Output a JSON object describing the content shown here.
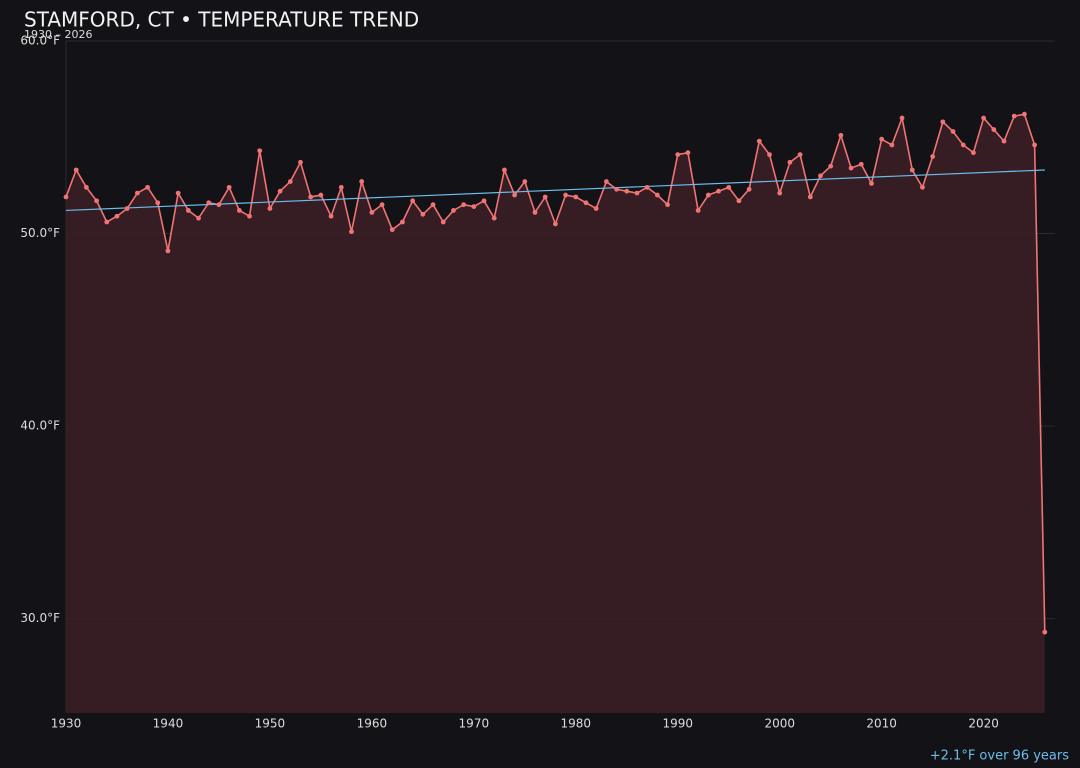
{
  "chart_data": {
    "type": "line",
    "title": "STAMFORD, CT • TEMPERATURE TREND",
    "subtitle": "1930 – 2026",
    "annotation": "+2.1°F over 96 years",
    "x": [
      1930,
      1931,
      1932,
      1933,
      1934,
      1935,
      1936,
      1937,
      1938,
      1939,
      1940,
      1941,
      1942,
      1943,
      1944,
      1945,
      1946,
      1947,
      1948,
      1949,
      1950,
      1951,
      1952,
      1953,
      1954,
      1955,
      1956,
      1957,
      1958,
      1959,
      1960,
      1961,
      1962,
      1963,
      1964,
      1965,
      1966,
      1967,
      1968,
      1969,
      1970,
      1971,
      1972,
      1973,
      1974,
      1975,
      1976,
      1977,
      1978,
      1979,
      1980,
      1981,
      1982,
      1983,
      1984,
      1985,
      1986,
      1987,
      1988,
      1989,
      1990,
      1991,
      1992,
      1993,
      1994,
      1995,
      1996,
      1997,
      1998,
      1999,
      2000,
      2001,
      2002,
      2003,
      2004,
      2005,
      2006,
      2007,
      2008,
      2009,
      2010,
      2011,
      2012,
      2013,
      2014,
      2015,
      2016,
      2017,
      2018,
      2019,
      2020,
      2021,
      2022,
      2023,
      2024,
      2025,
      2026
    ],
    "values": [
      51.9,
      53.3,
      52.4,
      51.7,
      50.6,
      50.9,
      51.3,
      52.1,
      52.4,
      51.6,
      49.1,
      52.1,
      51.2,
      50.8,
      51.6,
      51.5,
      52.4,
      51.2,
      50.9,
      54.3,
      51.3,
      52.2,
      52.7,
      53.7,
      51.9,
      52.0,
      50.9,
      52.4,
      50.1,
      52.7,
      51.1,
      51.5,
      50.2,
      50.6,
      51.7,
      51.0,
      51.5,
      50.6,
      51.2,
      51.5,
      51.4,
      51.7,
      50.8,
      53.3,
      52.0,
      52.7,
      51.1,
      51.9,
      50.5,
      52.0,
      51.9,
      51.6,
      51.3,
      52.7,
      52.3,
      52.2,
      52.1,
      52.4,
      52.0,
      51.5,
      54.1,
      54.2,
      51.2,
      52.0,
      52.2,
      52.4,
      51.7,
      52.3,
      54.8,
      54.1,
      52.1,
      53.7,
      54.1,
      51.9,
      53.0,
      53.5,
      55.1,
      53.4,
      53.6,
      52.6,
      54.9,
      54.6,
      56.0,
      53.3,
      52.4,
      54.0,
      55.8,
      55.3,
      54.6,
      54.2,
      56.0,
      55.4,
      54.8,
      56.1,
      56.2,
      54.6,
      29.3
    ],
    "color": "#f07474",
    "fill_color": "#3a1f25",
    "trend": {
      "x": [
        1930,
        2026
      ],
      "values": [
        51.2,
        53.3
      ],
      "color": "#6cbcec"
    },
    "xlim": [
      1930,
      2027
    ],
    "ylim": [
      25.1,
      60.0
    ],
    "xticks": [
      1930,
      1940,
      1950,
      1960,
      1970,
      1980,
      1990,
      2000,
      2010,
      2020
    ],
    "yticks": [
      {
        "value": 30,
        "label": "30.0°F"
      },
      {
        "value": 40,
        "label": "40.0°F"
      },
      {
        "value": 50,
        "label": "50.0°F"
      },
      {
        "value": 60,
        "label": "60.0°F"
      }
    ],
    "grid": true
  }
}
